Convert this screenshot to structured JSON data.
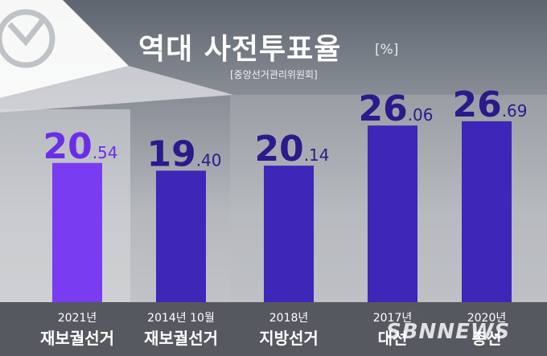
{
  "title": "역대 사전투표율",
  "unit": "[%]",
  "source": "[중앙선거관리위원회]",
  "watermark": "SBNNEWS",
  "colors": {
    "bar_highlight": "#7a3cf0",
    "bar": "#3d26b8",
    "value_highlight": "#6b2ee8",
    "value": "#2a1a8c"
  },
  "icon": "ballot-stamp-icon",
  "chart_data": {
    "type": "bar",
    "categories": [
      "2021년 재보궐선거",
      "2014년 10월 재보궐선거",
      "2018년 지방선거",
      "2017년 대선",
      "2020년 총선"
    ],
    "labels": [
      {
        "year": "2021년",
        "name": "재보궐선거",
        "int": "20",
        "dec": ".54"
      },
      {
        "year": "2014년 10월",
        "name": "재보궐선거",
        "int": "19",
        "dec": ".40"
      },
      {
        "year": "2018년",
        "name": "지방선거",
        "int": "20",
        "dec": ".14"
      },
      {
        "year": "2017년",
        "name": "대선",
        "int": "26",
        "dec": ".06"
      },
      {
        "year": "2020년",
        "name": "총선",
        "int": "26",
        "dec": ".69"
      }
    ],
    "values": [
      20.54,
      19.4,
      20.14,
      26.06,
      26.69
    ],
    "highlight_index": 0,
    "title": "역대 사전투표율",
    "ylabel": "",
    "ylim": [
      0,
      30
    ],
    "grid": false
  }
}
